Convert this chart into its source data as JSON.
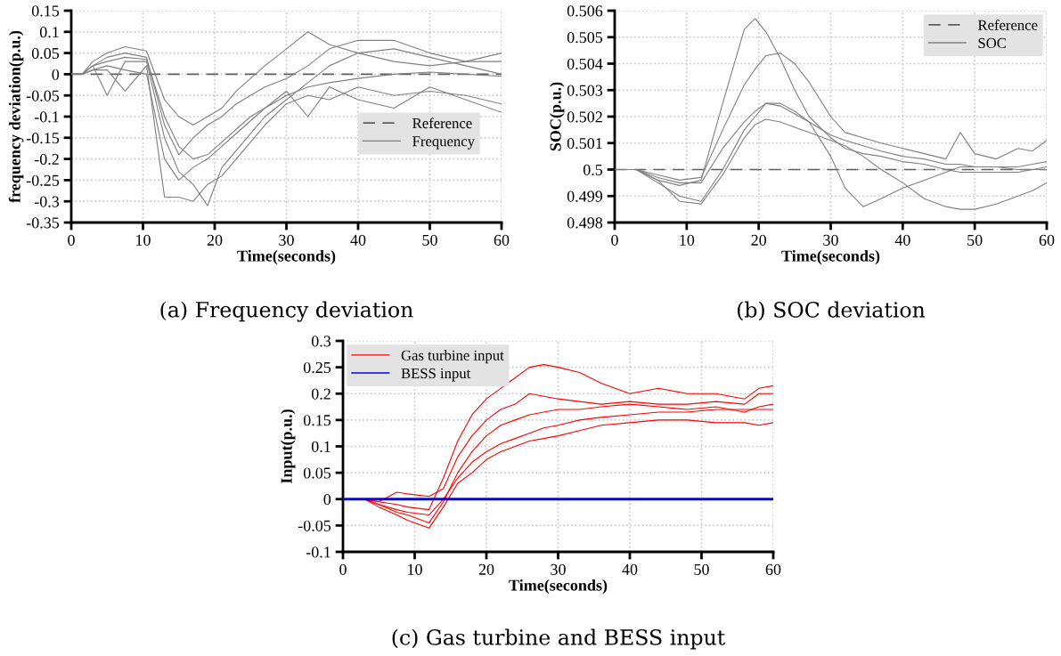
{
  "chart_data": [
    {
      "type": "line",
      "title": "(a) Frequency deviation",
      "xlabel": "Time(seconds)",
      "ylabel": "frequency deviation(p.u.)",
      "x": [
        0,
        1.5,
        3,
        5,
        7.5,
        10.5,
        13,
        15,
        17,
        19,
        21,
        23,
        25,
        27,
        30,
        33,
        36,
        40,
        45,
        50,
        55,
        60
      ],
      "series": [
        {
          "name": "Frequency",
          "color": "#808080",
          "values": [
            0,
            0,
            0.02,
            0.03,
            0.04,
            0.035,
            -0.1,
            -0.17,
            -0.2,
            -0.19,
            -0.16,
            -0.13,
            -0.1,
            -0.08,
            -0.05,
            -0.03,
            -0.02,
            -0.01,
            0,
            0.005,
            0,
            -0.005
          ]
        },
        {
          "color": "#808080",
          "values": [
            0,
            0,
            0.03,
            0.05,
            0.065,
            0.055,
            -0.06,
            -0.1,
            -0.12,
            -0.1,
            -0.08,
            -0.04,
            -0.01,
            0.02,
            0.06,
            0.1,
            0.07,
            0.05,
            0.03,
            0.02,
            0.03,
            0.05
          ]
        },
        {
          "color": "#808080",
          "values": [
            0,
            0,
            0.01,
            0.01,
            -0.04,
            0.02,
            -0.29,
            -0.29,
            -0.3,
            -0.26,
            -0.24,
            -0.2,
            -0.16,
            -0.12,
            -0.07,
            -0.05,
            -0.06,
            -0.03,
            -0.05,
            -0.04,
            -0.05,
            -0.07
          ]
        },
        {
          "color": "#808080",
          "values": [
            0,
            0,
            0.02,
            -0.05,
            0.03,
            0.03,
            -0.15,
            -0.23,
            -0.26,
            -0.31,
            -0.22,
            -0.18,
            -0.14,
            -0.1,
            -0.06,
            -0.02,
            0.02,
            0.05,
            0.06,
            0.04,
            0.02,
            0
          ]
        },
        {
          "color": "#808080",
          "values": [
            0,
            0,
            0.02,
            0.04,
            0.05,
            0.04,
            -0.12,
            -0.19,
            -0.15,
            -0.12,
            -0.1,
            -0.07,
            -0.05,
            -0.03,
            -0.01,
            0.02,
            0.06,
            0.08,
            0.08,
            0.05,
            0.03,
            0.03
          ]
        },
        {
          "color": "#808080",
          "values": [
            0,
            0,
            0.01,
            0.02,
            0.01,
            0,
            -0.2,
            -0.25,
            -0.22,
            -0.2,
            -0.17,
            -0.14,
            -0.11,
            -0.08,
            -0.04,
            -0.1,
            -0.03,
            -0.06,
            -0.08,
            -0.03,
            -0.06,
            -0.09
          ]
        }
      ],
      "ref_lines": [
        {
          "axis": "y",
          "value": 0,
          "label": "Reference",
          "color": "#606060",
          "line_style": "dashed"
        }
      ],
      "xlim": [
        0,
        60
      ],
      "xticks": [
        0,
        10,
        20,
        30,
        40,
        50,
        60
      ],
      "ylim": [
        -0.35,
        0.15
      ],
      "yticks": [
        -0.35,
        -0.3,
        -0.25,
        -0.2,
        -0.15,
        -0.1,
        -0.05,
        0,
        0.05,
        0.1,
        0.15
      ],
      "grid": true,
      "legend": "right",
      "line_style": "solid",
      "marker": "none"
    },
    {
      "type": "line",
      "title": "(b) SOC deviation",
      "xlabel": "Time(seconds)",
      "ylabel": "SOC(p.u.)",
      "x": [
        0,
        3,
        6,
        9,
        12,
        15,
        18,
        19.5,
        21,
        23,
        25,
        27,
        30,
        32,
        34.5,
        37,
        40,
        43,
        46,
        48,
        50,
        53,
        56,
        58,
        60
      ],
      "series": [
        {
          "name": "SOC",
          "color": "#808080",
          "values": [
            0.5,
            0.5,
            0.4997,
            0.4995,
            0.4995,
            0.5008,
            0.5018,
            0.5022,
            0.5025,
            0.5024,
            0.5021,
            0.5018,
            0.5013,
            0.5011,
            0.5009,
            0.5007,
            0.5005,
            0.5004,
            0.5002,
            0.5002,
            0.5001,
            0.5001,
            0.5,
            0.5,
            0.5
          ]
        },
        {
          "color": "#808080",
          "values": [
            0.5,
            0.5,
            0.4996,
            0.4994,
            0.4996,
            0.5025,
            0.5053,
            0.5057,
            0.5052,
            0.5042,
            0.503,
            0.502,
            0.5012,
            0.5008,
            0.5006,
            0.5005,
            0.5003,
            0.5002,
            0.5,
            0.4999,
            0.4999,
            0.4999,
            0.4999,
            0.5,
            0.5001
          ]
        },
        {
          "color": "#808080",
          "values": [
            0.5,
            0.5,
            0.4995,
            0.499,
            0.4988,
            0.5,
            0.5015,
            0.502,
            0.5025,
            0.5025,
            0.5022,
            0.5018,
            0.5005,
            0.4993,
            0.4986,
            0.4989,
            0.4993,
            0.4996,
            0.4999,
            0.5001,
            0.5001,
            0.5001,
            0.5001,
            0.5002,
            0.5003
          ]
        },
        {
          "color": "#808080",
          "values": [
            0.5,
            0.5,
            0.4996,
            0.4988,
            0.4987,
            0.4998,
            0.5012,
            0.5017,
            0.5019,
            0.5018,
            0.5016,
            0.5014,
            0.5011,
            0.5009,
            0.5005,
            0.5,
            0.4995,
            0.4989,
            0.4986,
            0.4985,
            0.4985,
            0.4987,
            0.499,
            0.4992,
            0.4995
          ]
        },
        {
          "color": "#808080",
          "values": [
            0.5,
            0.5,
            0.4998,
            0.4996,
            0.4997,
            0.5015,
            0.5032,
            0.5038,
            0.5043,
            0.5044,
            0.504,
            0.5033,
            0.502,
            0.5014,
            0.5012,
            0.501,
            0.5008,
            0.5006,
            0.5004,
            0.5014,
            0.5006,
            0.5004,
            0.5008,
            0.5007,
            0.5011
          ]
        }
      ],
      "ref_lines": [
        {
          "axis": "y",
          "value": 0.5,
          "label": "Reference",
          "color": "#606060",
          "line_style": "dashed"
        }
      ],
      "xlim": [
        0,
        60
      ],
      "xticks": [
        0,
        10,
        20,
        30,
        40,
        50,
        60
      ],
      "ylim": [
        0.498,
        0.506
      ],
      "yticks": [
        0.498,
        0.499,
        0.5,
        0.501,
        0.502,
        0.503,
        0.504,
        0.505,
        0.506
      ],
      "grid": true,
      "legend": "top right",
      "line_style": "solid",
      "marker": "none"
    },
    {
      "type": "line",
      "title": "(c) Gas turbine and BESS input",
      "xlabel": "Time(seconds)",
      "ylabel": "Input(p.u.)",
      "x": [
        0,
        3,
        5,
        7.5,
        9,
        12,
        14,
        16,
        18,
        20,
        22,
        24,
        26,
        28,
        30,
        33,
        36,
        40,
        44,
        48,
        52,
        56,
        58,
        60
      ],
      "series": [
        {
          "name": "Gas turbine input",
          "color": "#ff0000",
          "values": [
            0,
            0,
            -0.01,
            -0.02,
            -0.025,
            -0.03,
            0,
            0.04,
            0.07,
            0.09,
            0.105,
            0.115,
            0.125,
            0.135,
            0.14,
            0.15,
            0.155,
            0.16,
            0.165,
            0.165,
            0.17,
            0.17,
            0.17,
            0.17
          ]
        },
        {
          "color": "#ff0000",
          "values": [
            0,
            0,
            -0.005,
            -0.01,
            -0.015,
            -0.02,
            0.04,
            0.11,
            0.16,
            0.19,
            0.21,
            0.23,
            0.25,
            0.255,
            0.25,
            0.24,
            0.22,
            0.2,
            0.21,
            0.2,
            0.2,
            0.19,
            0.21,
            0.215
          ]
        },
        {
          "color": "#ff0000",
          "values": [
            0,
            0,
            -0.015,
            -0.03,
            -0.04,
            -0.055,
            -0.015,
            0.03,
            0.05,
            0.075,
            0.09,
            0.1,
            0.11,
            0.115,
            0.12,
            0.13,
            0.14,
            0.145,
            0.15,
            0.15,
            0.145,
            0.145,
            0.14,
            0.145
          ]
        },
        {
          "color": "#ff0000",
          "values": [
            0,
            0,
            -0.005,
            0.013,
            0.01,
            0.005,
            0.02,
            0.08,
            0.12,
            0.15,
            0.17,
            0.18,
            0.2,
            0.195,
            0.19,
            0.185,
            0.18,
            0.185,
            0.18,
            0.18,
            0.185,
            0.18,
            0.2,
            0.2
          ]
        },
        {
          "color": "#ff0000",
          "values": [
            0,
            0,
            -0.01,
            -0.025,
            -0.03,
            -0.045,
            -0.005,
            0.05,
            0.09,
            0.12,
            0.14,
            0.15,
            0.16,
            0.165,
            0.17,
            0.17,
            0.175,
            0.18,
            0.175,
            0.17,
            0.175,
            0.165,
            0.175,
            0.18
          ]
        },
        {
          "name": "BESS input",
          "color": "#0000ff",
          "x": [
            0,
            60
          ],
          "values": [
            0,
            0
          ]
        }
      ],
      "xlim": [
        0,
        60
      ],
      "xticks": [
        0,
        10,
        20,
        30,
        40,
        50,
        60
      ],
      "ylim": [
        -0.1,
        0.3
      ],
      "yticks": [
        -0.1,
        -0.05,
        0,
        0.05,
        0.1,
        0.15,
        0.2,
        0.25,
        0.3
      ],
      "grid": true,
      "legend": "top left",
      "line_style": "solid",
      "marker": "none"
    }
  ]
}
